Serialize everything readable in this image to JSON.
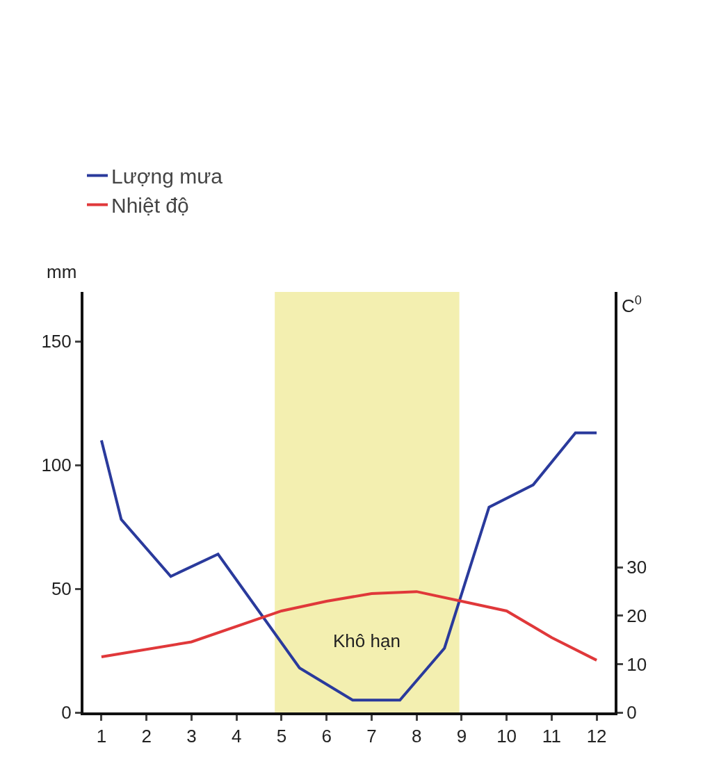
{
  "chart_data": {
    "type": "line",
    "ylabel": "mm",
    "y2label": "C$^{0}$",
    "xlim": [
      0.6,
      12.4
    ],
    "xticks": [
      1,
      2,
      3,
      4,
      5,
      6,
      7,
      8,
      9,
      10,
      11,
      12
    ],
    "ylim": [
      0,
      170
    ],
    "yticks": [
      0,
      50,
      100,
      150
    ],
    "y2lim": [
      0,
      87
    ],
    "y2ticks": [
      0,
      10,
      20,
      30
    ],
    "series": [
      {
        "name": "Lượng mưa",
        "color": "#2a3a9c",
        "x": [
          1,
          1.44,
          2.54,
          3.59,
          5.4,
          6.58,
          7.63,
          8.62,
          9.61,
          10.59,
          11.53,
          12
        ],
        "values": [
          110,
          78,
          55,
          64,
          18,
          5,
          5,
          26,
          83,
          92,
          113,
          113
        ]
      },
      {
        "name": "Nhiệt độ",
        "color": "#e0383a",
        "axis": "y2",
        "x": [
          1,
          3,
          5,
          6,
          7,
          8,
          9,
          10,
          11,
          12
        ],
        "values": [
          11.5,
          14.6,
          21,
          23,
          24.6,
          25,
          23,
          21,
          15.5,
          10.8
        ]
      }
    ],
    "bands": [
      {
        "axis": "x",
        "from": 4.85,
        "to": 8.95,
        "label": "Khô hạn",
        "color": "#f3efb0"
      }
    ],
    "legend": "top left",
    "grid": false,
    "marker": "none",
    "line_style": "solid"
  }
}
